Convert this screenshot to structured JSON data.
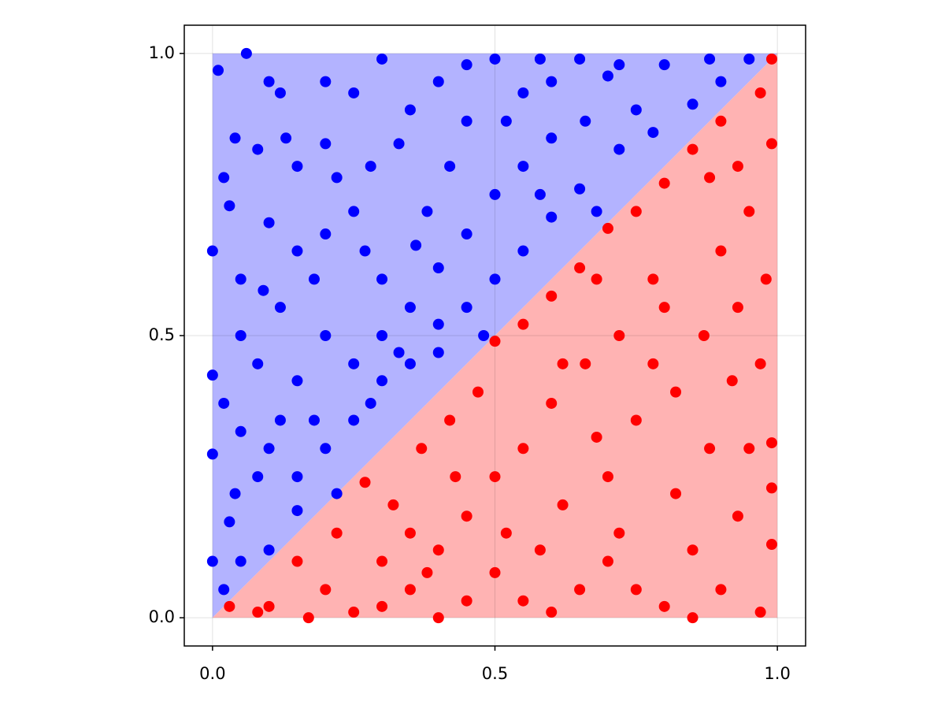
{
  "chart_data": {
    "type": "scatter",
    "xlim": [
      -0.05,
      1.05
    ],
    "ylim": [
      -0.05,
      1.05
    ],
    "xticks": [
      {
        "value": 0,
        "label": "0.0"
      },
      0.5,
      {
        "value": 1,
        "label": "1.0"
      }
    ],
    "yticks": [
      {
        "value": 0,
        "label": "0.0"
      },
      0.5,
      {
        "value": 1,
        "label": "1.0"
      }
    ],
    "grid": true,
    "areas": [
      {
        "color": "#b3b3ff",
        "x": [
          0,
          0,
          1
        ],
        "y": [
          0,
          1,
          1
        ]
      },
      {
        "color": "#ffb3b3",
        "x": [
          0,
          1,
          1
        ],
        "y": [
          0,
          0,
          1
        ]
      }
    ],
    "series": [
      {
        "color": "#0000ff",
        "x": [
          0.01,
          0.06,
          0.04,
          0.12,
          0.2,
          0.3,
          0.4,
          0.5,
          0.6,
          0.65,
          0.7,
          0.8,
          0.9,
          0.95,
          0.85,
          0.78,
          0.72,
          0.65,
          0.6,
          0.55,
          0.5,
          0.45,
          0.48,
          0.4,
          0.35,
          0.3,
          0.25,
          0.22,
          0.15,
          0.1,
          0.05,
          0.02,
          0.0,
          0.03,
          0.0,
          0.05,
          0.1,
          0.02,
          0.08,
          0.0,
          0.15,
          0.2,
          0.12,
          0.05,
          0.0,
          0.03,
          0.1,
          0.15,
          0.2,
          0.25,
          0.3,
          0.35,
          0.4,
          0.45,
          0.5,
          0.55,
          0.6,
          0.45,
          0.35,
          0.28,
          0.22,
          0.15,
          0.08,
          0.02,
          0.1,
          0.25,
          0.33,
          0.42,
          0.52,
          0.58,
          0.68,
          0.75,
          0.66,
          0.55,
          0.38,
          0.3,
          0.25,
          0.18,
          0.12,
          0.08,
          0.04,
          0.15,
          0.2,
          0.28,
          0.33,
          0.4,
          0.18,
          0.27,
          0.36,
          0.05,
          0.09,
          0.13,
          0.2,
          0.45,
          0.58,
          0.88,
          0.72
        ],
        "y": [
          0.97,
          1.0,
          0.85,
          0.93,
          0.84,
          0.99,
          0.95,
          0.99,
          0.95,
          0.99,
          0.96,
          0.98,
          0.95,
          0.99,
          0.91,
          0.86,
          0.83,
          0.76,
          0.71,
          0.65,
          0.6,
          0.55,
          0.5,
          0.47,
          0.45,
          0.42,
          0.35,
          0.22,
          0.19,
          0.12,
          0.1,
          0.05,
          0.1,
          0.17,
          0.29,
          0.33,
          0.3,
          0.38,
          0.45,
          0.43,
          0.42,
          0.5,
          0.55,
          0.6,
          0.65,
          0.73,
          0.7,
          0.65,
          0.68,
          0.72,
          0.6,
          0.55,
          0.62,
          0.68,
          0.75,
          0.8,
          0.85,
          0.88,
          0.9,
          0.8,
          0.78,
          0.8,
          0.83,
          0.78,
          0.95,
          0.93,
          0.84,
          0.8,
          0.88,
          0.75,
          0.72,
          0.9,
          0.88,
          0.93,
          0.72,
          0.5,
          0.45,
          0.35,
          0.35,
          0.25,
          0.22,
          0.25,
          0.3,
          0.38,
          0.47,
          0.52,
          0.6,
          0.65,
          0.66,
          0.5,
          0.58,
          0.85,
          0.95,
          0.98,
          0.99,
          0.99,
          0.98
        ]
      },
      {
        "color": "#ff0000",
        "x": [
          0.99,
          0.97,
          0.99,
          0.93,
          0.88,
          0.95,
          0.9,
          0.98,
          0.93,
          0.97,
          0.92,
          0.99,
          0.95,
          0.99,
          0.93,
          0.99,
          0.9,
          0.97,
          0.85,
          0.8,
          0.75,
          0.7,
          0.65,
          0.6,
          0.55,
          0.5,
          0.45,
          0.4,
          0.35,
          0.3,
          0.25,
          0.2,
          0.17,
          0.1,
          0.08,
          0.03,
          0.15,
          0.22,
          0.27,
          0.32,
          0.37,
          0.42,
          0.47,
          0.5,
          0.55,
          0.6,
          0.65,
          0.7,
          0.75,
          0.8,
          0.85,
          0.78,
          0.72,
          0.66,
          0.6,
          0.55,
          0.5,
          0.45,
          0.4,
          0.35,
          0.3,
          0.62,
          0.7,
          0.75,
          0.82,
          0.87,
          0.8,
          0.68,
          0.58,
          0.72,
          0.82,
          0.88,
          0.85,
          0.78,
          0.9,
          0.62,
          0.52,
          0.43,
          0.38,
          0.68
        ],
        "y": [
          0.99,
          0.93,
          0.84,
          0.8,
          0.78,
          0.72,
          0.65,
          0.6,
          0.55,
          0.45,
          0.42,
          0.31,
          0.3,
          0.23,
          0.18,
          0.13,
          0.05,
          0.01,
          0.0,
          0.02,
          0.05,
          0.1,
          0.05,
          0.01,
          0.03,
          0.08,
          0.03,
          0.0,
          0.05,
          0.02,
          0.01,
          0.05,
          0.0,
          0.02,
          0.01,
          0.02,
          0.1,
          0.15,
          0.24,
          0.2,
          0.3,
          0.35,
          0.4,
          0.49,
          0.52,
          0.57,
          0.62,
          0.69,
          0.72,
          0.77,
          0.83,
          0.6,
          0.5,
          0.45,
          0.38,
          0.3,
          0.25,
          0.18,
          0.12,
          0.15,
          0.1,
          0.2,
          0.25,
          0.35,
          0.4,
          0.5,
          0.55,
          0.32,
          0.12,
          0.15,
          0.22,
          0.3,
          0.12,
          0.45,
          0.88,
          0.45,
          0.15,
          0.25,
          0.08,
          0.6
        ]
      }
    ]
  }
}
